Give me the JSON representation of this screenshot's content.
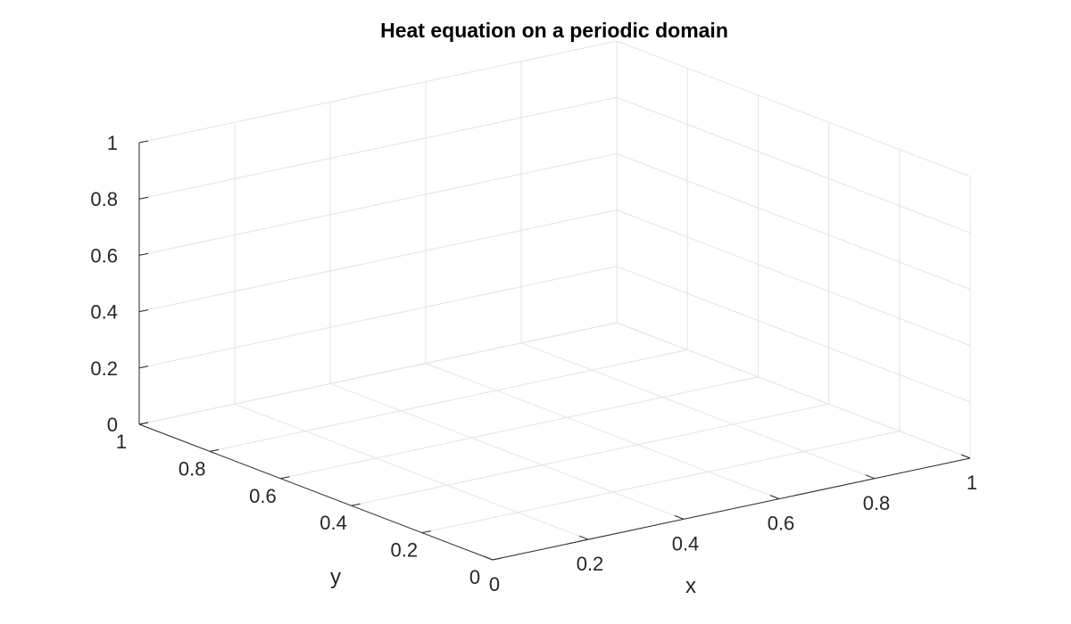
{
  "chart_data": {
    "type": "surface",
    "title": "Heat equation on a periodic domain",
    "xlabel": "x",
    "ylabel": "y",
    "zlabel": "",
    "xlim": [
      0,
      1
    ],
    "ylim": [
      0,
      1
    ],
    "zlim": [
      0,
      1
    ],
    "x_ticks": [
      "0",
      "0.2",
      "0.4",
      "0.6",
      "0.8",
      "1"
    ],
    "y_ticks": [
      "0",
      "0.2",
      "0.4",
      "0.6",
      "0.8",
      "1"
    ],
    "z_ticks": [
      "0",
      "0.2",
      "0.4",
      "0.6",
      "0.8",
      "1"
    ],
    "grid": true,
    "series": []
  },
  "colors": {
    "grid": "#e3e3e3",
    "axis": "#262626",
    "title": "#000000",
    "background": "#ffffff"
  }
}
